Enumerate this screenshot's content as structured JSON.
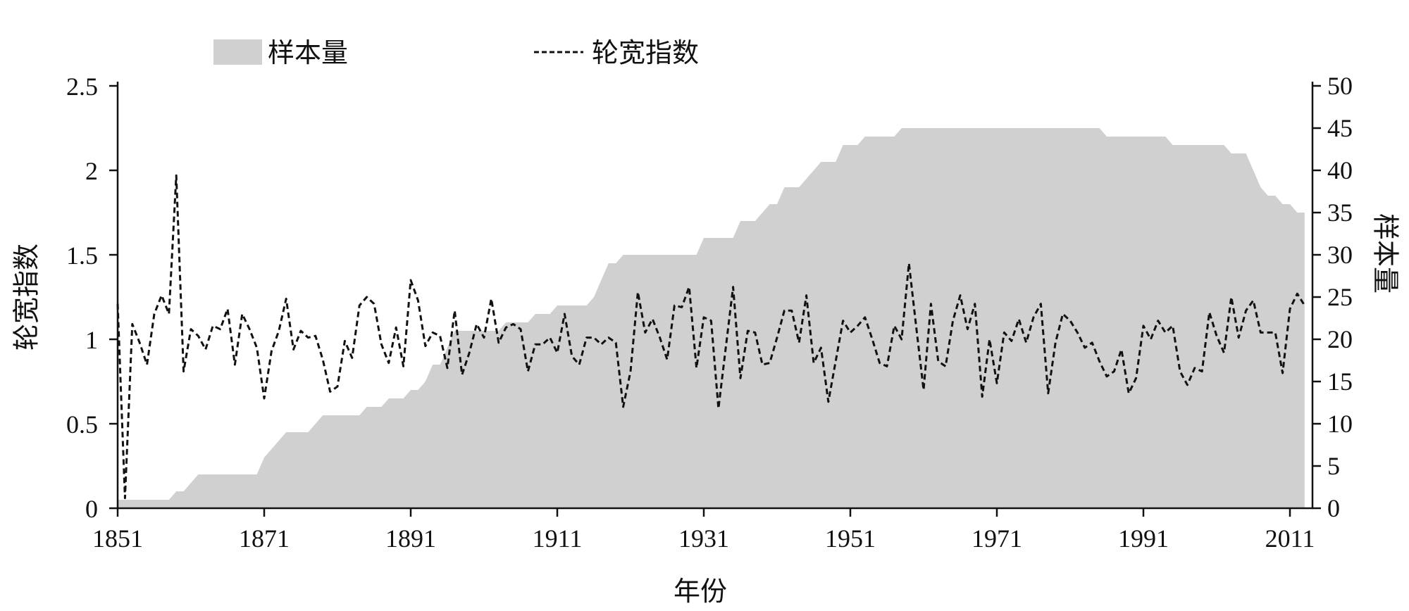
{
  "chart_data": {
    "type": "line+area",
    "legend": {
      "placement": "top-left",
      "items": [
        {
          "label": "样本量",
          "style": "area",
          "color": "#d0d0d0"
        },
        {
          "label": "轮宽指数",
          "style": "dashed-line",
          "color": "#111111"
        }
      ]
    },
    "xlabel": "年份",
    "ylabel_left": "轮宽指数",
    "ylabel_right": "样本量",
    "xlim": [
      1851,
      2013
    ],
    "ylim_left": [
      0,
      2.5
    ],
    "ylim_right": [
      0,
      50
    ],
    "x_ticks": [
      "1851",
      "1871",
      "1891",
      "1911",
      "1931",
      "1951",
      "1971",
      "1991",
      "2011"
    ],
    "y_left_ticks": [
      "0",
      "0.5",
      "1",
      "1.5",
      "2",
      "2.5"
    ],
    "y_right_ticks": [
      "0",
      "5",
      "10",
      "15",
      "20",
      "25",
      "30",
      "35",
      "40",
      "45",
      "50"
    ],
    "grid": false,
    "x": [
      1851,
      1852,
      1853,
      1854,
      1855,
      1856,
      1857,
      1858,
      1859,
      1860,
      1861,
      1862,
      1863,
      1864,
      1865,
      1866,
      1867,
      1868,
      1869,
      1870,
      1871,
      1872,
      1873,
      1874,
      1875,
      1876,
      1877,
      1878,
      1879,
      1880,
      1881,
      1882,
      1883,
      1884,
      1885,
      1886,
      1887,
      1888,
      1889,
      1890,
      1891,
      1892,
      1893,
      1894,
      1895,
      1896,
      1897,
      1898,
      1899,
      1900,
      1901,
      1902,
      1903,
      1904,
      1905,
      1906,
      1907,
      1908,
      1909,
      1910,
      1911,
      1912,
      1913,
      1914,
      1915,
      1916,
      1917,
      1918,
      1919,
      1920,
      1921,
      1922,
      1923,
      1924,
      1925,
      1926,
      1927,
      1928,
      1929,
      1930,
      1931,
      1932,
      1933,
      1934,
      1935,
      1936,
      1937,
      1938,
      1939,
      1940,
      1941,
      1942,
      1943,
      1944,
      1945,
      1946,
      1947,
      1948,
      1949,
      1950,
      1951,
      1952,
      1953,
      1954,
      1955,
      1956,
      1957,
      1958,
      1959,
      1960,
      1961,
      1962,
      1963,
      1964,
      1965,
      1966,
      1967,
      1968,
      1969,
      1970,
      1971,
      1972,
      1973,
      1974,
      1975,
      1976,
      1977,
      1978,
      1979,
      1980,
      1981,
      1982,
      1983,
      1984,
      1985,
      1986,
      1987,
      1988,
      1989,
      1990,
      1991,
      1992,
      1993,
      1994,
      1995,
      1996,
      1997,
      1998,
      1999,
      2000,
      2001,
      2002,
      2003,
      2004,
      2005,
      2006,
      2007,
      2008,
      2009,
      2010,
      2011,
      2012,
      2013
    ],
    "series": [
      {
        "name": "轮宽指数",
        "axis": "left",
        "values": [
          1.21,
          0.06,
          1.09,
          0.98,
          0.85,
          1.15,
          1.26,
          1.15,
          1.97,
          0.81,
          1.06,
          1.02,
          0.94,
          1.08,
          1.06,
          1.18,
          0.85,
          1.15,
          1.06,
          0.95,
          0.65,
          0.93,
          1.05,
          1.24,
          0.94,
          1.05,
          1.01,
          1.02,
          0.88,
          0.69,
          0.72,
          0.99,
          0.89,
          1.2,
          1.25,
          1.21,
          0.97,
          0.86,
          1.07,
          0.84,
          1.35,
          1.23,
          0.96,
          1.04,
          1.02,
          0.83,
          1.17,
          0.79,
          0.92,
          1.09,
          1.01,
          1.24,
          0.98,
          1.07,
          1.09,
          1.06,
          0.81,
          0.97,
          0.97,
          1.01,
          0.92,
          1.15,
          0.9,
          0.85,
          1.01,
          1.01,
          0.97,
          1.01,
          0.98,
          0.6,
          0.81,
          1.28,
          1.04,
          1.12,
          1.01,
          0.88,
          1.2,
          1.19,
          1.31,
          0.83,
          1.13,
          1.11,
          0.59,
          0.95,
          1.31,
          0.77,
          1.05,
          1.04,
          0.85,
          0.86,
          1.01,
          1.17,
          1.17,
          0.98,
          1.26,
          0.86,
          0.95,
          0.63,
          0.87,
          1.11,
          1.04,
          1.08,
          1.13,
          1.0,
          0.86,
          0.84,
          1.08,
          1.0,
          1.45,
          1.07,
          0.7,
          1.21,
          0.87,
          0.84,
          1.11,
          1.26,
          1.06,
          1.21,
          0.66,
          1.0,
          0.74,
          1.04,
          0.99,
          1.12,
          0.98,
          1.13,
          1.21,
          0.68,
          0.98,
          1.15,
          1.11,
          1.04,
          0.95,
          0.98,
          0.87,
          0.78,
          0.81,
          0.94,
          0.68,
          0.77,
          1.08,
          1.0,
          1.11,
          1.04,
          1.08,
          0.81,
          0.73,
          0.83,
          0.81,
          1.16,
          1.02,
          0.92,
          1.25,
          1.01,
          1.17,
          1.23,
          1.04,
          1.04,
          1.04,
          0.8,
          1.18,
          1.27,
          1.2
        ]
      },
      {
        "name": "样本量",
        "axis": "right",
        "values": [
          1,
          1,
          1,
          1,
          1,
          1,
          1,
          1,
          2,
          2,
          3,
          4,
          4,
          4,
          4,
          4,
          4,
          4,
          4,
          4,
          6,
          7,
          8,
          9,
          9,
          9,
          9,
          10,
          11,
          11,
          11,
          11,
          11,
          11,
          12,
          12,
          12,
          13,
          13,
          13,
          14,
          14,
          15,
          17,
          17,
          19,
          21,
          21,
          21,
          21,
          21,
          21,
          21,
          22,
          22,
          22,
          22,
          23,
          23,
          23,
          24,
          24,
          24,
          24,
          24,
          25,
          27,
          29,
          29,
          30,
          30,
          30,
          30,
          30,
          30,
          30,
          30,
          30,
          30,
          30,
          32,
          32,
          32,
          32,
          32,
          34,
          34,
          34,
          35,
          36,
          36,
          38,
          38,
          38,
          39,
          40,
          41,
          41,
          41,
          43,
          43,
          43,
          44,
          44,
          44,
          44,
          44,
          45,
          45,
          45,
          45,
          45,
          45,
          45,
          45,
          45,
          45,
          45,
          45,
          45,
          45,
          45,
          45,
          45,
          45,
          45,
          45,
          45,
          45,
          45,
          45,
          45,
          45,
          45,
          45,
          44,
          44,
          44,
          44,
          44,
          44,
          44,
          44,
          44,
          43,
          43,
          43,
          43,
          43,
          43,
          43,
          43,
          42,
          42,
          42,
          40,
          38,
          37,
          37,
          36,
          36,
          35,
          35
        ]
      }
    ]
  }
}
